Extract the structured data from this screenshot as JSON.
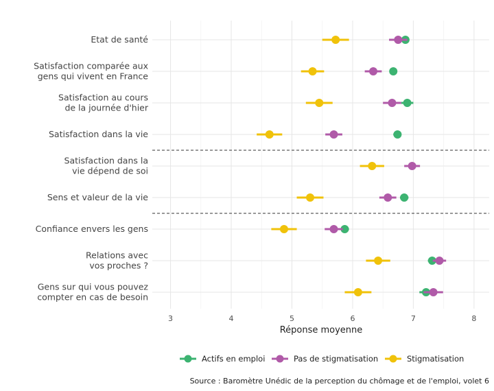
{
  "chart_data": {
    "type": "dot-errorbar",
    "xlabel": "Réponse moyenne",
    "xlim": [
      2.7,
      8.25
    ],
    "xticks": [
      3,
      4,
      5,
      6,
      7,
      8
    ],
    "categories": [
      "Etat de santé",
      "Satisfaction comparée aux\ngens qui vivent en France",
      "Satisfaction au cours\nde la journée d'hier",
      "Satisfaction dans la vie",
      "Satisfaction dans la\nvie dépend de soi",
      "Sens et valeur de la vie",
      "Confiance envers les gens",
      "Relations avec\nvos proches ?",
      "Gens sur qui vous pouvez\ncompter en cas de besoin"
    ],
    "separators_after_index": [
      3,
      5
    ],
    "series": [
      {
        "name": "Actifs en emploi",
        "color": "#3cb371",
        "values": [
          6.87,
          6.67,
          6.9,
          6.74,
          null,
          6.85,
          5.87,
          7.31,
          7.21
        ],
        "ci_low": [
          6.8,
          6.61,
          6.8,
          6.67,
          null,
          6.78,
          5.81,
          7.24,
          7.1
        ],
        "ci_high": [
          6.93,
          6.73,
          7.0,
          6.8,
          null,
          6.92,
          5.94,
          7.37,
          7.31
        ]
      },
      {
        "name": "Pas de stigmatisation",
        "color": "#b05aa8",
        "values": [
          6.75,
          6.34,
          6.65,
          5.69,
          6.98,
          6.58,
          5.69,
          7.43,
          7.33
        ],
        "ci_low": [
          6.6,
          6.2,
          6.5,
          5.55,
          6.85,
          6.44,
          5.54,
          7.32,
          7.17
        ],
        "ci_high": [
          6.9,
          6.48,
          6.8,
          5.83,
          7.11,
          6.72,
          5.84,
          7.54,
          7.49
        ]
      },
      {
        "name": "Stigmatisation",
        "color": "#f0c20a",
        "values": [
          5.72,
          5.34,
          5.45,
          4.63,
          6.32,
          5.3,
          4.87,
          6.42,
          6.09
        ],
        "ci_low": [
          5.5,
          5.15,
          5.23,
          4.42,
          6.12,
          5.08,
          4.66,
          6.22,
          5.87
        ],
        "ci_high": [
          5.94,
          5.53,
          5.67,
          4.84,
          6.52,
          5.52,
          5.08,
          6.62,
          6.31
        ]
      }
    ],
    "legend_position": "bottom",
    "grid": true
  },
  "source": "Source : Baromètre Unédic de la perception du chômage et de l'emploi, volet 6"
}
